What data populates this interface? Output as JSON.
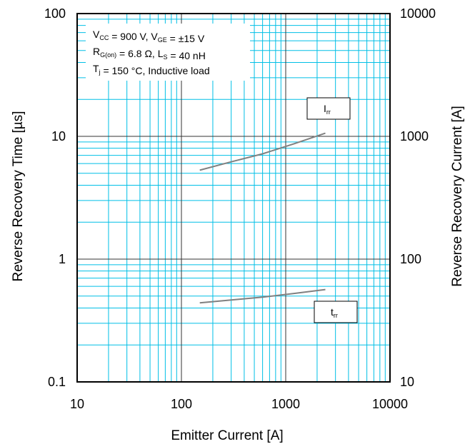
{
  "chart_data": {
    "type": "line",
    "xlabel": "Emitter Current [A]",
    "ylabel": "Reverse Recovery Time [µs]",
    "ylabel_right": "Reverse Recovery Current [A]",
    "xscale": "log",
    "yscale": "log",
    "xlim": [
      10,
      10000
    ],
    "ylim": [
      0.1,
      100
    ],
    "ylim_right": [
      10,
      10000
    ],
    "x_ticks": [
      "10",
      "100",
      "1000",
      "10000"
    ],
    "y_ticks": [
      "0.1",
      "1",
      "10",
      "100"
    ],
    "y_right_ticks": [
      "10",
      "100",
      "1000",
      "10000"
    ],
    "grid": true,
    "grid_color": "#00bfe6",
    "major_grid_color": "#333333",
    "line_color": "#808080",
    "conditions": [
      {
        "parts": [
          [
            "V",
            ""
          ],
          [
            "CC",
            "sub"
          ],
          [
            " = 900 V, V",
            ""
          ],
          [
            "GE",
            "sub"
          ],
          [
            " = ±15 V",
            ""
          ]
        ]
      },
      {
        "parts": [
          [
            "R",
            ""
          ],
          [
            "G(on)",
            "sub"
          ],
          [
            " = 6.8 Ω, L",
            ""
          ],
          [
            "S",
            "sub"
          ],
          [
            " = 40 nH",
            ""
          ]
        ]
      },
      {
        "parts": [
          [
            "T",
            ""
          ],
          [
            "j",
            "sub"
          ],
          [
            " = 150 °C, Inductive load",
            ""
          ]
        ]
      }
    ],
    "series": [
      {
        "name_parts": [
          [
            "I",
            ""
          ],
          [
            "rr",
            "sub"
          ]
        ],
        "axis": "right",
        "x": [
          150,
          300,
          600,
          1200,
          2400
        ],
        "y": [
          530,
          620,
          720,
          870,
          1060
        ]
      },
      {
        "name_parts": [
          [
            "t",
            ""
          ],
          [
            "rr",
            "sub"
          ]
        ],
        "axis": "left",
        "x": [
          150,
          300,
          600,
          1200,
          2400
        ],
        "y": [
          0.44,
          0.465,
          0.49,
          0.525,
          0.565
        ]
      }
    ]
  }
}
